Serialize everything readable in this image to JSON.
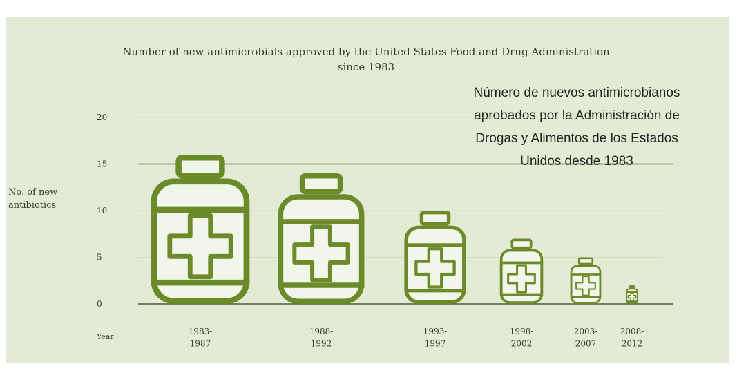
{
  "chart_data": {
    "type": "pictogram",
    "title": "Number of new antimicrobials approved by the United States Food and Drug Administration\nsince 1983",
    "annotation": "Número de nuevos antimicrobianos\naprobados por la Administración de\nDrogas y Alimentos de los Estados\nUnidos desde 1983",
    "y_label": "No. of new\nantibiotics",
    "x_label": "Year",
    "categories": [
      "1983-\n1987",
      "1988-\n1992",
      "1993-\n1997",
      "1998-\n2002",
      "2003-\n2007",
      "2008-\n2012"
    ],
    "values": [
      16,
      14,
      10,
      7,
      5,
      2
    ],
    "color": "#6b8a2a",
    "ylim": [
      0,
      20
    ],
    "yticks": [
      0,
      5,
      10,
      15,
      20
    ],
    "grid": true
  }
}
